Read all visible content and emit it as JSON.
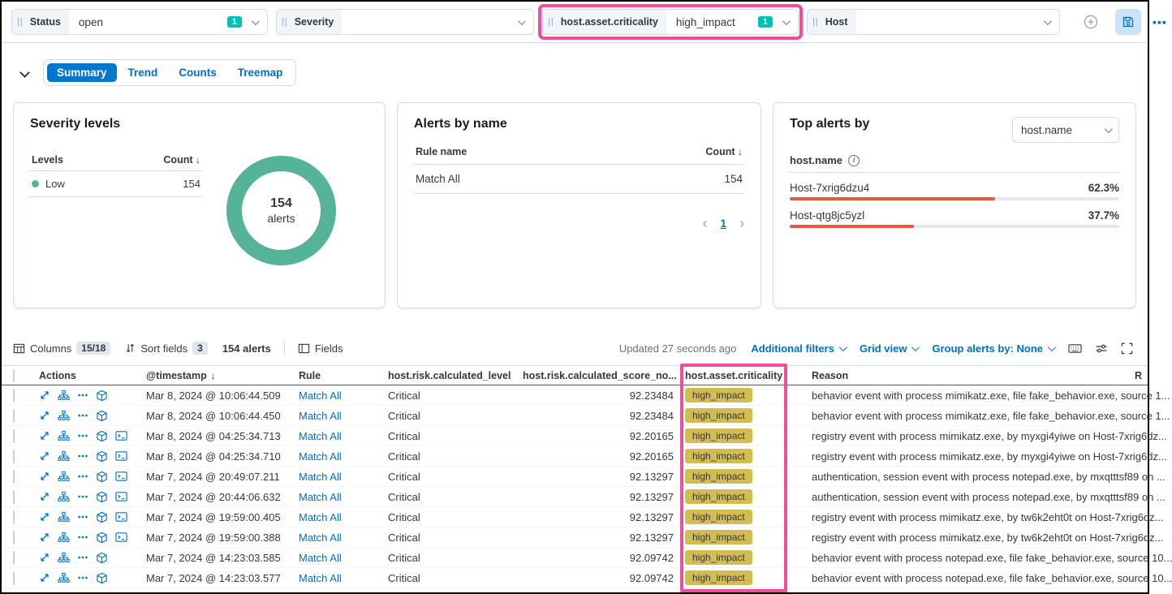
{
  "filter_bar": {
    "filters": [
      {
        "label": "Status",
        "value": "open",
        "count": "1",
        "highlighted": false
      },
      {
        "label": "Severity",
        "value": "",
        "count": "",
        "highlighted": false
      },
      {
        "label": "host.asset.criticality",
        "value": "high_impact",
        "count": "1",
        "highlighted": true
      },
      {
        "label": "Host",
        "value": "",
        "count": "",
        "highlighted": false
      }
    ]
  },
  "chart_panel": {
    "tabs": [
      {
        "label": "Summary",
        "active": true
      },
      {
        "label": "Trend",
        "active": false
      },
      {
        "label": "Counts",
        "active": false
      },
      {
        "label": "Treemap",
        "active": false
      }
    ],
    "severity_card": {
      "title": "Severity levels",
      "col_levels": "Levels",
      "col_count": "Count",
      "sort_arrow": "↓",
      "rows": [
        {
          "label": "Low",
          "count": "154",
          "color": "#54B399"
        }
      ],
      "donut_value": "154",
      "donut_label": "alerts"
    },
    "alerts_by_name_card": {
      "title": "Alerts by name",
      "col_rule": "Rule name",
      "col_count": "Count",
      "sort_arrow": "↓",
      "rows": [
        {
          "name": "Match All",
          "count": "154"
        }
      ],
      "pagination": {
        "prev": "‹",
        "page": "1",
        "next": "›"
      }
    },
    "top_alerts_card": {
      "title": "Top alerts by",
      "selector_value": "host.name",
      "field_label": "host.name",
      "rows": [
        {
          "name": "Host-7xrig6dzu4",
          "pct": "62.3%",
          "value": 62.3
        },
        {
          "name": "Host-qtg8jc5yzl",
          "pct": "37.7%",
          "value": 37.7
        }
      ]
    }
  },
  "table_toolbar": {
    "columns_label": "Columns",
    "columns_badge": "15/18",
    "sort_label": "Sort fields",
    "sort_badge": "3",
    "alert_count": "154 alerts",
    "fields_label": "Fields",
    "updated": "Updated 27 seconds ago",
    "additional_filters": "Additional filters",
    "grid_view": "Grid view",
    "group_by": "Group alerts by: None"
  },
  "alerts_table": {
    "headers": {
      "actions": "Actions",
      "timestamp": "@timestamp",
      "sort_arrow": "↓",
      "rule": "Rule",
      "level": "host.risk.calculated_level",
      "score": "host.risk.calculated_score_no...",
      "criticality": "host.asset.criticality",
      "reason": "Reason",
      "last_truncated": "R"
    },
    "rows": [
      {
        "timestamp": "Mar 8, 2024 @ 10:06:44.509",
        "rule": "Match All",
        "level": "Critical",
        "score": "92.23484",
        "criticality": "high_impact",
        "reason": "behavior event with process mimikatz.exe, file fake_behavior.exe, source 1...",
        "session": false
      },
      {
        "timestamp": "Mar 8, 2024 @ 10:06:44.450",
        "rule": "Match All",
        "level": "Critical",
        "score": "92.23484",
        "criticality": "high_impact",
        "reason": "behavior event with process mimikatz.exe, file fake_behavior.exe, source 1...",
        "session": false
      },
      {
        "timestamp": "Mar 8, 2024 @ 04:25:34.713",
        "rule": "Match All",
        "level": "Critical",
        "score": "92.20165",
        "criticality": "high_impact",
        "reason": "registry event with process mimikatz.exe, by myxgi4yiwe on Host-7xrig6dz...",
        "session": true
      },
      {
        "timestamp": "Mar 8, 2024 @ 04:25:34.710",
        "rule": "Match All",
        "level": "Critical",
        "score": "92.20165",
        "criticality": "high_impact",
        "reason": "registry event with process mimikatz.exe, by myxgi4yiwe on Host-7xrig6dz...",
        "session": true
      },
      {
        "timestamp": "Mar 7, 2024 @ 20:49:07.211",
        "rule": "Match All",
        "level": "Critical",
        "score": "92.13297",
        "criticality": "high_impact",
        "reason": "authentication, session event with process notepad.exe, by mxqtttsf89 on ...",
        "session": true
      },
      {
        "timestamp": "Mar 7, 2024 @ 20:44:06.632",
        "rule": "Match All",
        "level": "Critical",
        "score": "92.13297",
        "criticality": "high_impact",
        "reason": "authentication, session event with process notepad.exe, by mxqtttsf89 on ...",
        "session": true
      },
      {
        "timestamp": "Mar 7, 2024 @ 19:59:00.405",
        "rule": "Match All",
        "level": "Critical",
        "score": "92.13297",
        "criticality": "high_impact",
        "reason": "registry event with process mimikatz.exe, by tw6k2eht0t on Host-7xrig6dz...",
        "session": true
      },
      {
        "timestamp": "Mar 7, 2024 @ 19:59:00.388",
        "rule": "Match All",
        "level": "Critical",
        "score": "92.13297",
        "criticality": "high_impact",
        "reason": "registry event with process mimikatz.exe, by tw6k2eht0t on Host-7xrig6dz...",
        "session": true
      },
      {
        "timestamp": "Mar 7, 2024 @ 14:23:03.585",
        "rule": "Match All",
        "level": "Critical",
        "score": "92.09742",
        "criticality": "high_impact",
        "reason": "behavior event with process notepad.exe, file fake_behavior.exe, source 10...",
        "session": false
      },
      {
        "timestamp": "Mar 7, 2024 @ 14:23:03.577",
        "rule": "Match All",
        "level": "Critical",
        "score": "92.09742",
        "criticality": "high_impact",
        "reason": "behavior event with process notepad.exe, file fake_behavior.exe, source 10...",
        "session": false
      }
    ]
  },
  "colors": {
    "highlight_pink": "#F04E98",
    "donut_green": "#54B399",
    "bar_orange": "#E9593F",
    "criticality_badge_gold": "#D3BC52",
    "filter_count_teal": "#00BFB3",
    "primary_blue": "#0077CC"
  }
}
